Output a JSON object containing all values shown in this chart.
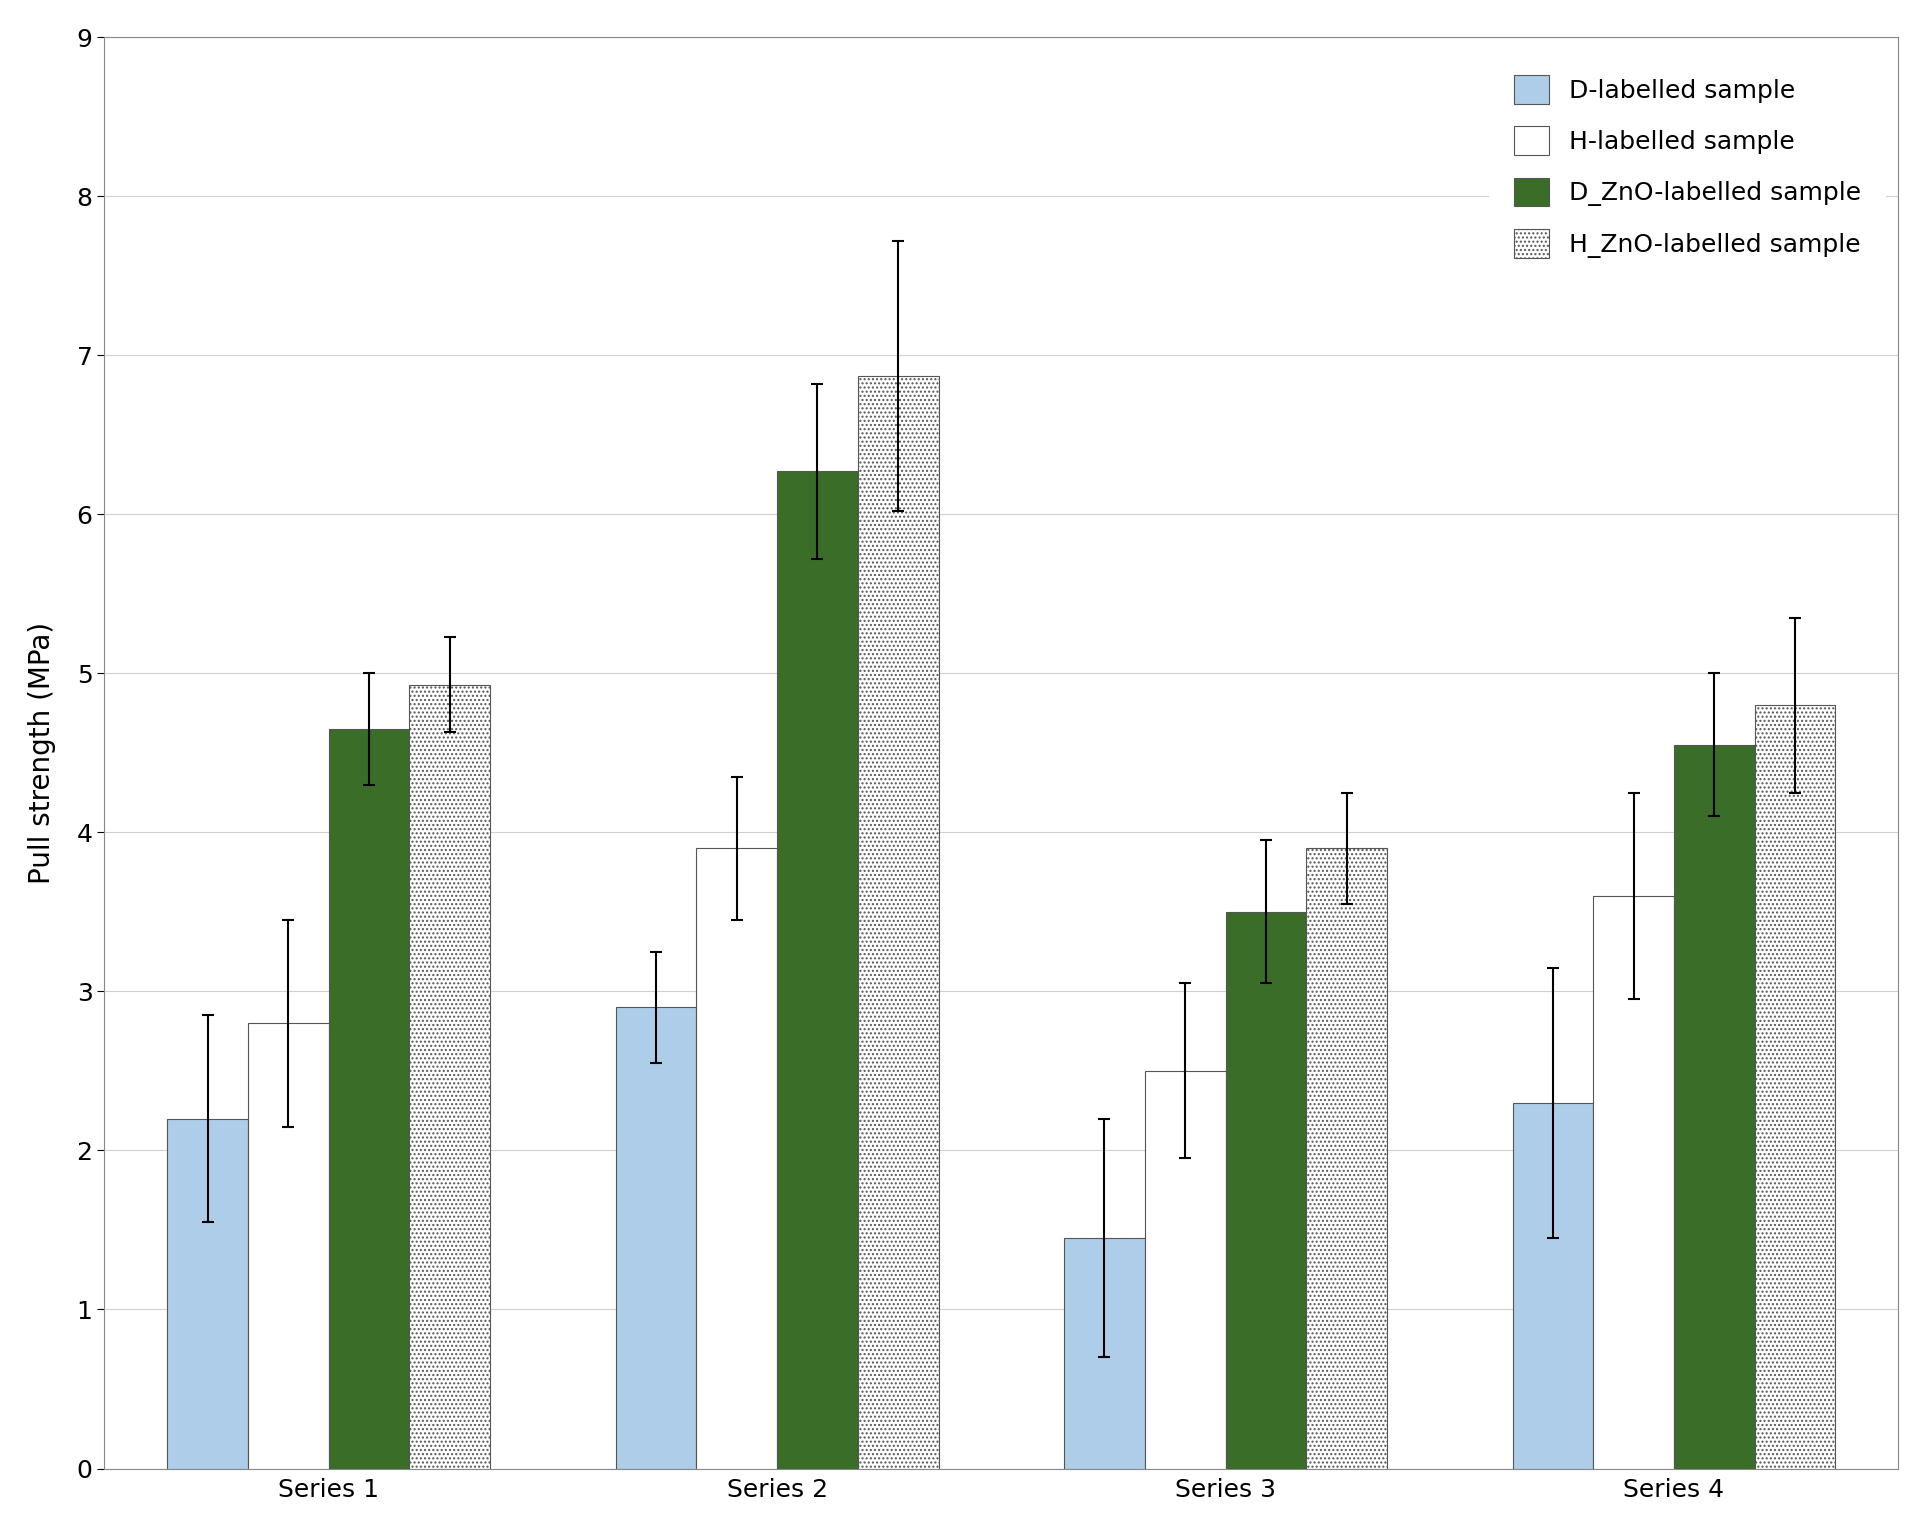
{
  "categories": [
    "Series 1",
    "Series 2",
    "Series 3",
    "Series 4"
  ],
  "series": [
    {
      "name": "D-labelled sample",
      "values": [
        2.2,
        2.9,
        1.45,
        2.3
      ],
      "errors": [
        0.65,
        0.35,
        0.75,
        0.85
      ],
      "color": "#aecde8",
      "edgecolor": "#555555",
      "hatch": null
    },
    {
      "name": "H-labelled sample",
      "values": [
        2.8,
        3.9,
        2.5,
        3.6
      ],
      "errors": [
        0.65,
        0.45,
        0.55,
        0.65
      ],
      "color": "#ffffff",
      "edgecolor": "#555555",
      "hatch": null
    },
    {
      "name": "D_ZnO-labelled sample",
      "values": [
        4.65,
        6.27,
        3.5,
        4.55
      ],
      "errors": [
        0.35,
        0.55,
        0.45,
        0.45
      ],
      "color": "#3a6e28",
      "edgecolor": "#555555",
      "hatch": null
    },
    {
      "name": "H_ZnO-labelled sample",
      "values": [
        4.93,
        6.87,
        3.9,
        4.8
      ],
      "errors": [
        0.3,
        0.85,
        0.35,
        0.55
      ],
      "color": "#ffffff",
      "edgecolor": "#555555",
      "hatch": "...."
    }
  ],
  "ylabel": "Pull strength (MPa)",
  "ylim": [
    0,
    9
  ],
  "yticks": [
    0,
    1,
    2,
    3,
    4,
    5,
    6,
    7,
    8,
    9
  ],
  "bar_width": 0.18,
  "legend_fontsize": 18,
  "axis_fontsize": 20,
  "tick_fontsize": 18,
  "background_color": "#ffffff",
  "grid_color": "#d0d0d0"
}
